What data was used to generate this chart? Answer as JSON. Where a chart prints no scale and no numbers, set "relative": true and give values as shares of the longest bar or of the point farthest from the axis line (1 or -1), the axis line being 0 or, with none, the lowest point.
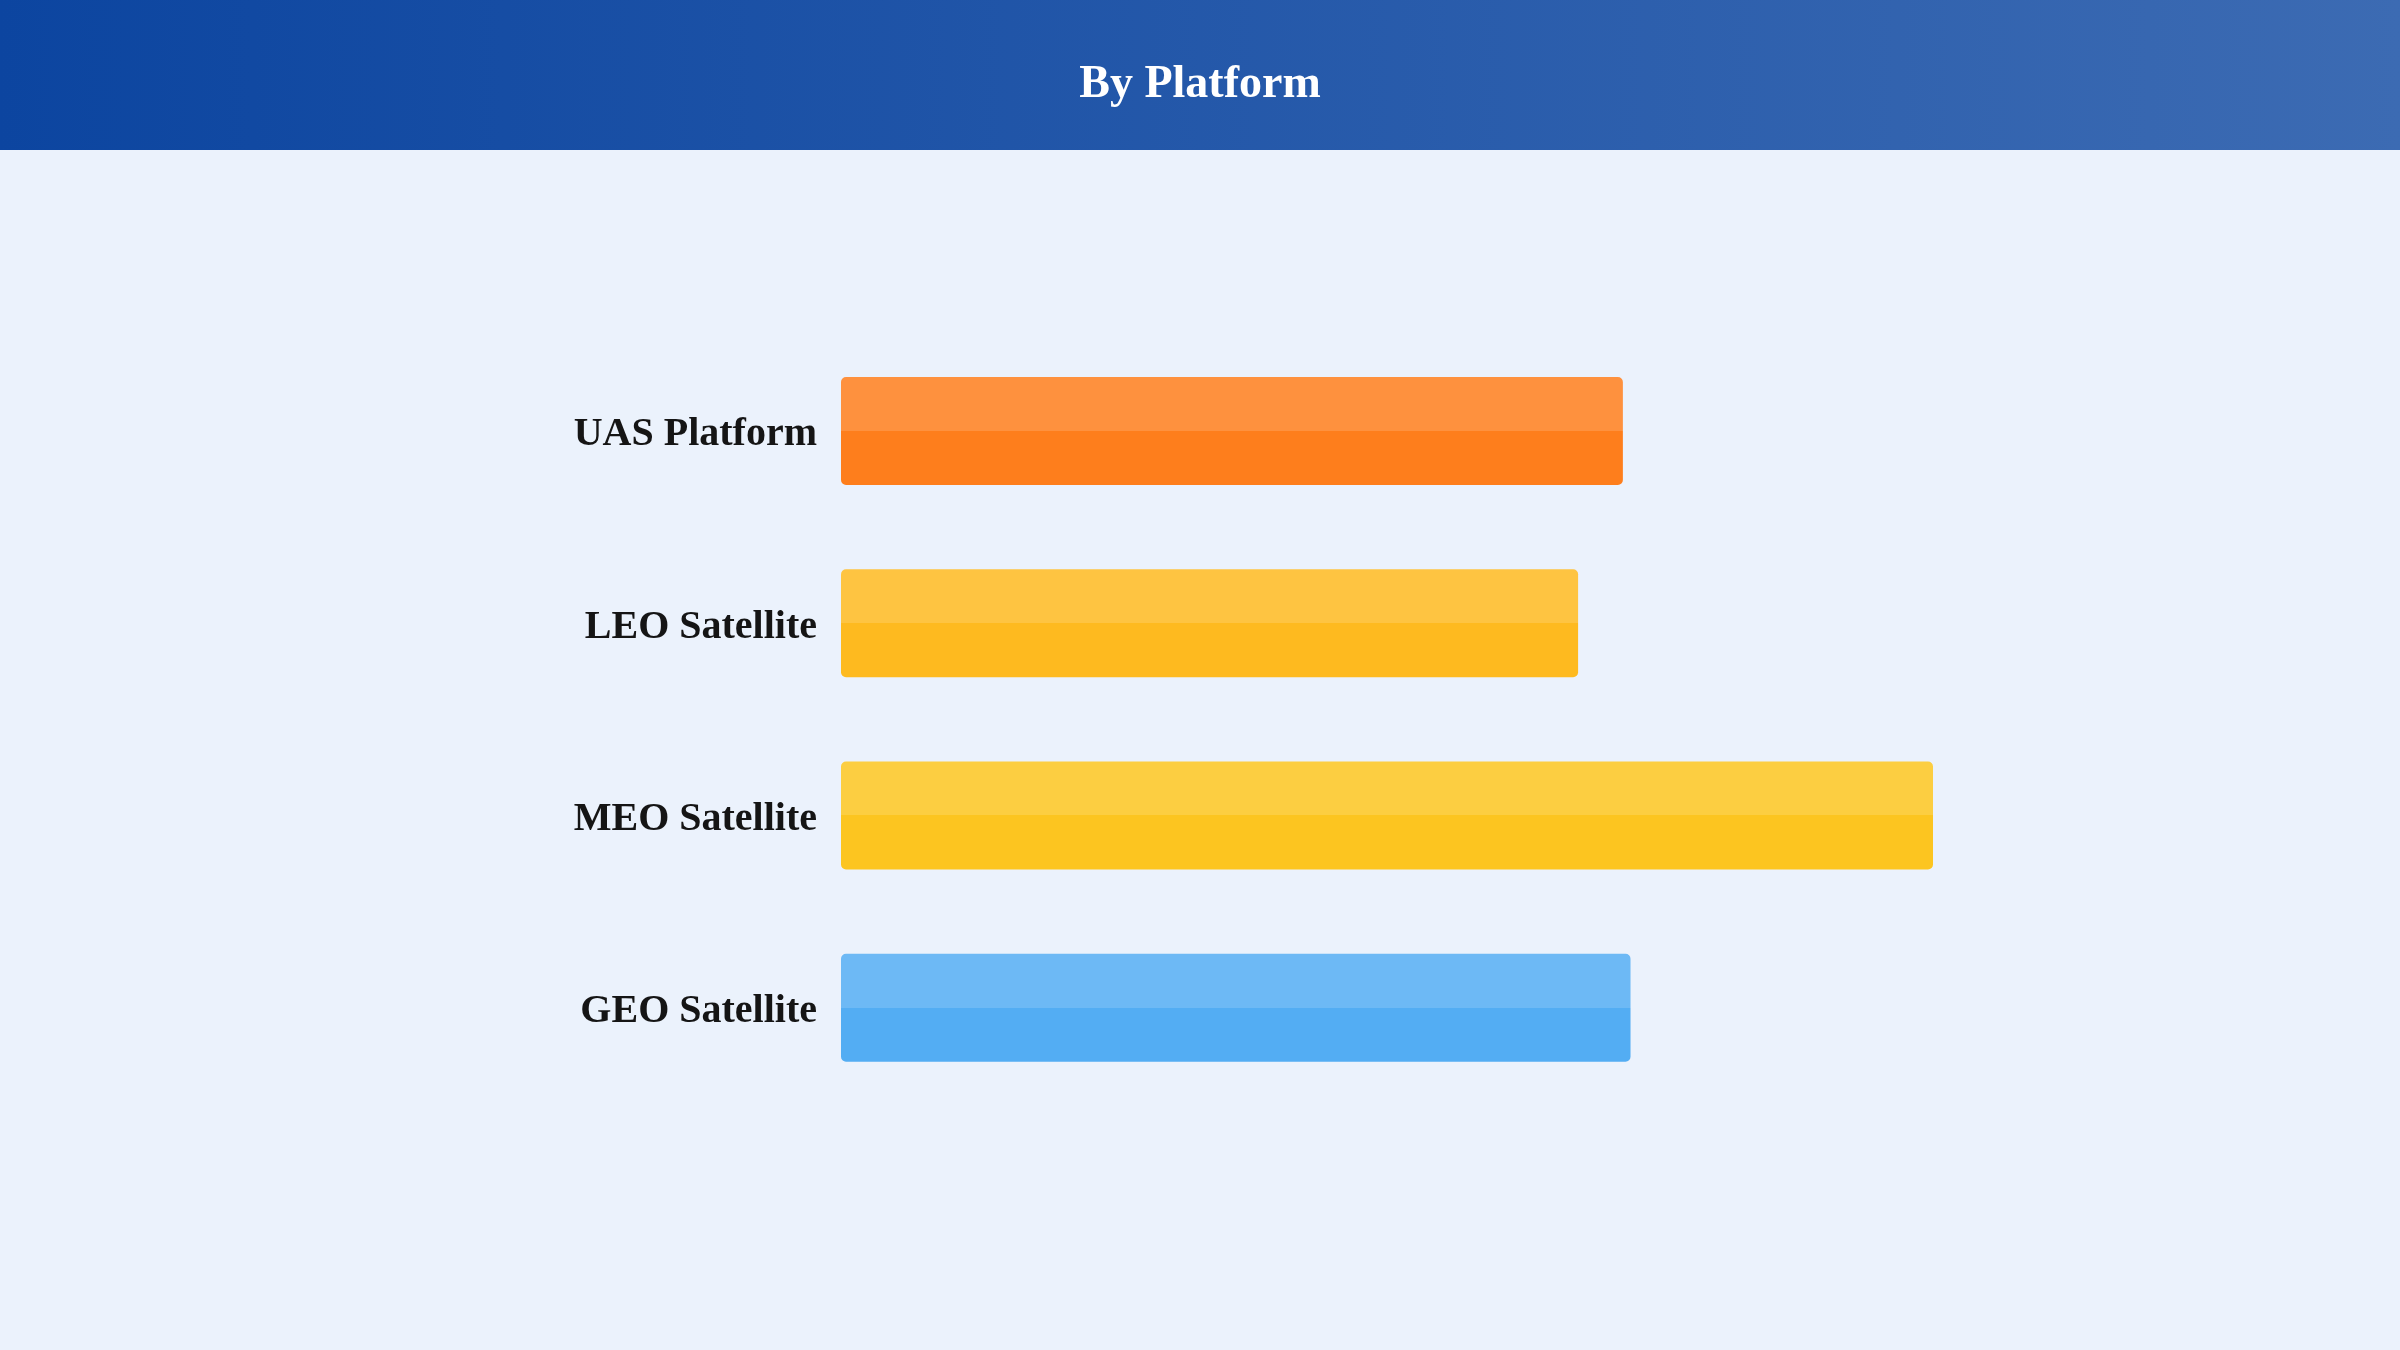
{
  "chart_data": {
    "type": "bar",
    "title": "By Platform",
    "orientation": "horizontal",
    "relative": true,
    "categories": [
      "UAS Platform",
      "LEO Satellite",
      "MEO Satellite",
      "GEO Satellite"
    ],
    "values": [
      0.716,
      0.675,
      1,
      0.723
    ],
    "colors": [
      "#fe7e1c",
      "#feba1f",
      "#fcc520",
      "#53adf3"
    ]
  }
}
